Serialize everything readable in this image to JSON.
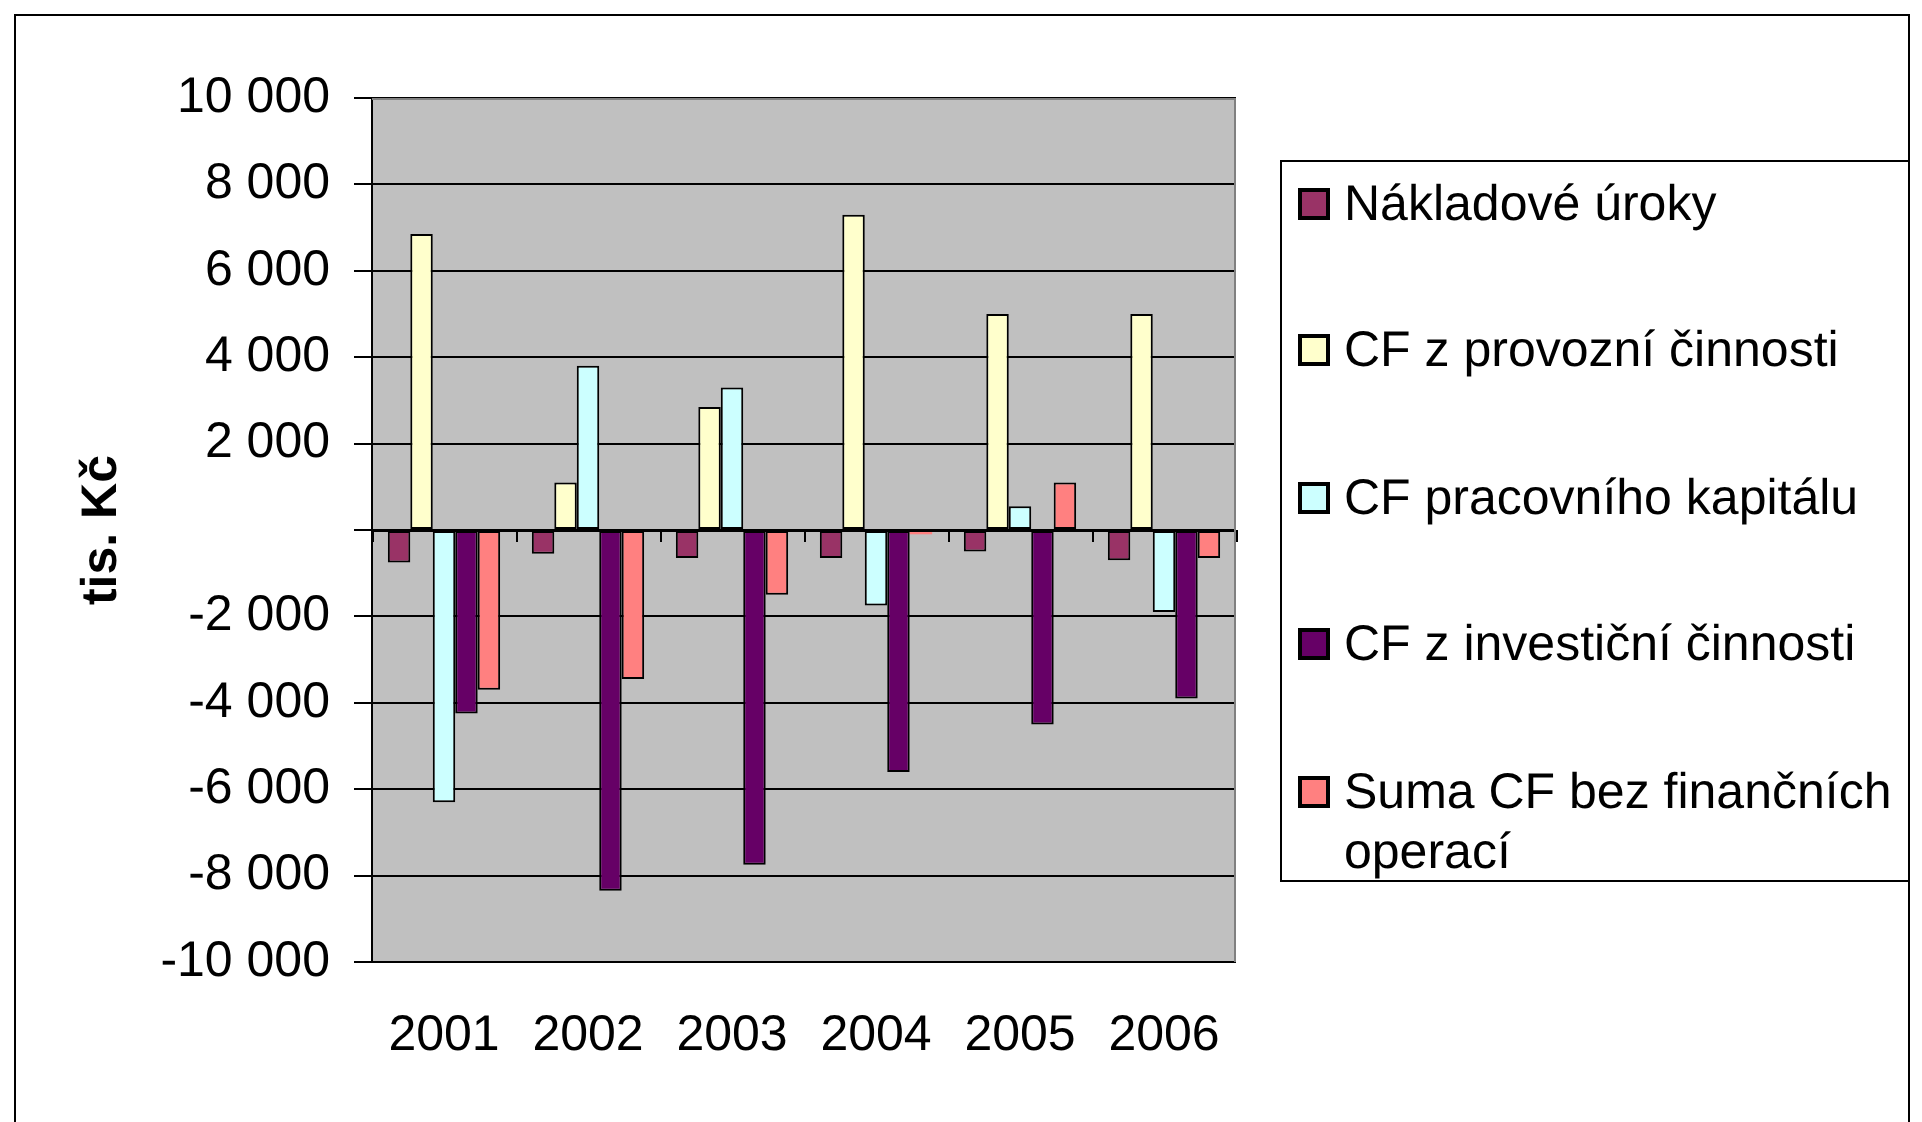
{
  "chart_data": {
    "type": "bar",
    "ylabel": "tis. Kč",
    "categories": [
      "2001",
      "2002",
      "2003",
      "2004",
      "2005",
      "2006"
    ],
    "series": [
      {
        "name": "Nákladové úroky",
        "color": "#993366",
        "values": [
          -750,
          -550,
          -650,
          -650,
          -500,
          -700
        ]
      },
      {
        "name": "CF z provozní činnosti",
        "color": "#ffffcc",
        "values": [
          6850,
          1100,
          2850,
          7300,
          5000,
          5000
        ]
      },
      {
        "name": "CF pracovního kapitálu",
        "color": "#ccffff",
        "values": [
          -6300,
          3800,
          3300,
          -1750,
          550,
          -1900
        ]
      },
      {
        "name": "CF z investiční činnosti",
        "color": "#660066",
        "values": [
          -4250,
          -8350,
          -7750,
          -5600,
          -4500,
          -3900
        ]
      },
      {
        "name": "Suma CF bez finančních operací",
        "color": "#ff8080",
        "values": [
          -3700,
          -3450,
          -1500,
          -100,
          1100,
          -650
        ]
      }
    ],
    "ylim": [
      -10000,
      10000
    ],
    "yticks": [
      {
        "value": -10000,
        "label": "-10 000"
      },
      {
        "value": -8000,
        "label": "-8 000"
      },
      {
        "value": -6000,
        "label": "-6 000"
      },
      {
        "value": -4000,
        "label": "-4 000"
      },
      {
        "value": -2000,
        "label": "-2 000"
      },
      {
        "value": 0,
        "label": null
      },
      {
        "value": 2000,
        "label": "2 000"
      },
      {
        "value": 4000,
        "label": "4 000"
      },
      {
        "value": 6000,
        "label": "6 000"
      },
      {
        "value": 8000,
        "label": "8 000"
      },
      {
        "value": 10000,
        "label": "10 000"
      }
    ],
    "grid": "y",
    "legend": "right"
  }
}
